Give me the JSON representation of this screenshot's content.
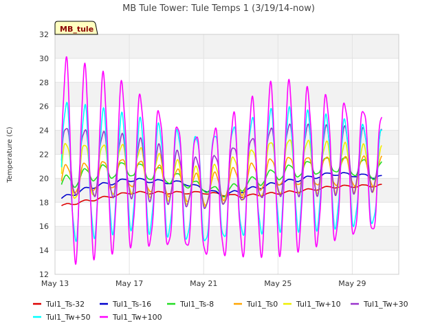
{
  "chart_data": {
    "type": "line",
    "title": "MB Tule Tower: Tule Temps 1 (3/19/14-now)",
    "ylabel": "Temperature (C)",
    "xlabel": "",
    "tag_label": "MB_tule",
    "xlim": [
      0,
      18.5
    ],
    "ylim": [
      12,
      32
    ],
    "y_ticks": [
      12,
      14,
      16,
      18,
      20,
      22,
      24,
      26,
      28,
      30,
      32
    ],
    "x_ticks": [
      {
        "day": 0,
        "label": "May 13"
      },
      {
        "day": 4,
        "label": "May 17"
      },
      {
        "day": 8,
        "label": "May 21"
      },
      {
        "day": 12,
        "label": "May 25"
      },
      {
        "day": 16,
        "label": "May 29"
      }
    ],
    "grid": true,
    "legend_position": "bottom",
    "series": [
      {
        "name": "Tul1_Ts-32",
        "color": "#dd0000",
        "base": [
          [
            0,
            17.6
          ],
          [
            4,
            18.8
          ],
          [
            8,
            18.8
          ],
          [
            10,
            18.5
          ],
          [
            13,
            18.9
          ],
          [
            15,
            19.3
          ],
          [
            17.5,
            19.4
          ]
        ],
        "amp": [
          [
            0,
            0.1
          ],
          [
            17.5,
            0.1
          ]
        ],
        "peak": 0.6
      },
      {
        "name": "Tul1_Ts-16",
        "color": "#0000cc",
        "base": [
          [
            0,
            18.1
          ],
          [
            2,
            19.3
          ],
          [
            4,
            19.9
          ],
          [
            7,
            19.6
          ],
          [
            9,
            18.6
          ],
          [
            12,
            19.6
          ],
          [
            15,
            20.4
          ],
          [
            17.5,
            20.1
          ]
        ],
        "amp": [
          [
            0,
            0.15
          ],
          [
            17.5,
            0.15
          ]
        ],
        "peak": 0.6
      },
      {
        "name": "Tul1_Ts-8",
        "color": "#22dd22",
        "base": [
          [
            0,
            19.3
          ],
          [
            2,
            20.4
          ],
          [
            4,
            20.8
          ],
          [
            6,
            20.2
          ],
          [
            8,
            19.2
          ],
          [
            9,
            18.8
          ],
          [
            12,
            20.4
          ],
          [
            15,
            21.2
          ],
          [
            17.5,
            20.6
          ]
        ],
        "amp": [
          [
            0,
            0.6
          ],
          [
            6,
            0.6
          ],
          [
            8,
            0.3
          ],
          [
            17.5,
            0.8
          ]
        ],
        "peak": 0.6
      },
      {
        "name": "Tul1_Ts0",
        "color": "#ffa500",
        "base": [
          [
            0,
            19.8
          ],
          [
            4,
            20.5
          ],
          [
            8,
            19.0
          ],
          [
            12,
            20.6
          ],
          [
            17.5,
            20.6
          ]
        ],
        "amp": [
          [
            0,
            1.2
          ],
          [
            17.5,
            1.2
          ]
        ],
        "peak": 0.6
      },
      {
        "name": "Tul1_Tw+10",
        "color": "#eeee00",
        "base": [
          [
            0,
            20.5
          ],
          [
            4,
            20.8
          ],
          [
            8,
            19.2
          ],
          [
            12,
            21.0
          ],
          [
            17.5,
            20.8
          ]
        ],
        "amp": [
          [
            0,
            2.5
          ],
          [
            8,
            1.5
          ],
          [
            12,
            2.4
          ],
          [
            17.5,
            1.8
          ]
        ],
        "peak": 0.6
      },
      {
        "name": "Tul1_Tw+30",
        "color": "#9933cc",
        "base": [
          [
            0,
            21.5
          ],
          [
            4,
            21.0
          ],
          [
            8,
            19.5
          ],
          [
            12,
            21.5
          ],
          [
            17.5,
            21.5
          ]
        ],
        "amp": [
          [
            0,
            3.0
          ],
          [
            8,
            2.0
          ],
          [
            12,
            3.0
          ],
          [
            17.5,
            2.5
          ]
        ],
        "peak": 0.6
      },
      {
        "name": "Tul1_Tw+50",
        "color": "#00ffff",
        "base": [
          [
            0,
            20.5
          ],
          [
            4,
            20.5
          ],
          [
            8,
            19.0
          ],
          [
            12,
            20.8
          ],
          [
            17.5,
            20.2
          ]
        ],
        "amp": [
          [
            0,
            6.0
          ],
          [
            4,
            4.5
          ],
          [
            8,
            4.5
          ],
          [
            12,
            5.0
          ],
          [
            17.5,
            4.0
          ]
        ],
        "peak": 0.6
      },
      {
        "name": "Tul1_Tw+100",
        "color": "#ff00ff",
        "base": [
          [
            0,
            21.5
          ],
          [
            4,
            21.0
          ],
          [
            8,
            18.5
          ],
          [
            12,
            21.0
          ],
          [
            17.5,
            20.5
          ]
        ],
        "amp": [
          [
            0,
            8.5
          ],
          [
            4,
            6.5
          ],
          [
            7,
            5.0
          ],
          [
            8,
            5.0
          ],
          [
            12,
            7.0
          ],
          [
            17.5,
            5.0
          ]
        ],
        "peak": 0.6
      }
    ]
  }
}
